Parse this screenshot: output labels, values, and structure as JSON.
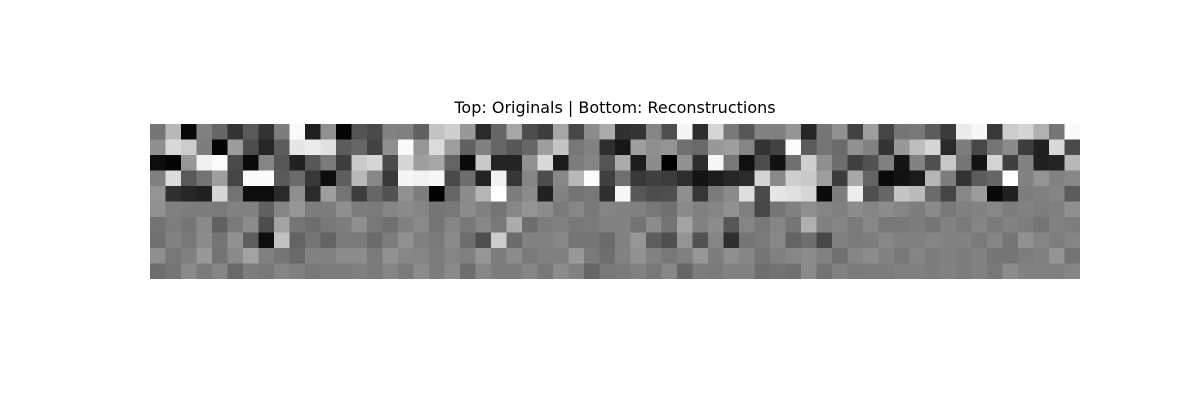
{
  "chart_data": {
    "type": "heatmap",
    "title": "Top: Originals | Bottom: Reconstructions",
    "axes_visible": false,
    "grid": false,
    "colormap": "gray",
    "value_range": [
      0,
      1
    ],
    "rows": 10,
    "cols": 60,
    "cells": [
      [
        0.46,
        0.72,
        0.03,
        0.5,
        0.4,
        0.2,
        0.35,
        0.2,
        0.49,
        0.98,
        0.12,
        0.57,
        0.02,
        0.33,
        0.29,
        0.51,
        0.5,
        0.38,
        0.77,
        0.81,
        0.6,
        0.16,
        0.4,
        0.65,
        0.3,
        0.24,
        0.65,
        0.28,
        0.55,
        0.67,
        0.19,
        0.2,
        0.52,
        0.31,
        0.96,
        0.18,
        0.84,
        0.47,
        0.34,
        0.51,
        0.5,
        0.58,
        0.15,
        0.46,
        0.57,
        0.26,
        0.62,
        0.27,
        0.46,
        0.47,
        0.36,
        0.23,
        0.92,
        0.97,
        0.22,
        0.8,
        0.83,
        0.69,
        0.46,
        0.98
      ],
      [
        0.56,
        0.85,
        0.8,
        0.49,
        0.02,
        0.61,
        0.3,
        0.15,
        0.36,
        0.9,
        0.92,
        0.88,
        0.36,
        0.4,
        0.26,
        0.56,
        0.98,
        0.59,
        0.86,
        0.62,
        0.38,
        0.5,
        0.4,
        0.34,
        0.4,
        0.62,
        0.77,
        0.47,
        0.51,
        0.18,
        0.09,
        0.62,
        0.56,
        0.58,
        0.44,
        0.41,
        0.6,
        0.62,
        0.52,
        0.2,
        0.26,
        0.99,
        0.36,
        0.46,
        0.42,
        0.57,
        0.51,
        0.2,
        0.6,
        0.74,
        0.84,
        0.16,
        0.49,
        0.28,
        0.46,
        0.54,
        0.24,
        0.13,
        0.85,
        0.29
      ],
      [
        0.05,
        0.02,
        0.59,
        0.94,
        0.99,
        0.29,
        0.04,
        0.52,
        0.34,
        0.13,
        0.34,
        0.48,
        0.24,
        0.79,
        0.84,
        0.29,
        0.84,
        0.62,
        0.65,
        0.39,
        0.04,
        0.79,
        0.14,
        0.14,
        0.57,
        0.85,
        0.1,
        0.49,
        0.52,
        0.33,
        0.67,
        0.11,
        0.55,
        0.0,
        0.57,
        0.18,
        0.97,
        0.47,
        0.06,
        0.3,
        0.07,
        0.44,
        0.81,
        0.56,
        0.43,
        0.25,
        0.32,
        0.5,
        0.08,
        0.51,
        0.31,
        0.78,
        0.46,
        0.08,
        0.83,
        0.25,
        0.51,
        0.13,
        0.14,
        0.72
      ],
      [
        0.5,
        0.86,
        0.35,
        0.45,
        0.62,
        0.27,
        0.98,
        0.98,
        0.35,
        0.42,
        0.22,
        0.05,
        0.37,
        0.72,
        0.53,
        0.22,
        0.96,
        0.95,
        0.97,
        0.29,
        0.43,
        0.14,
        0.95,
        0.21,
        0.52,
        0.3,
        0.53,
        0.72,
        0.99,
        0.25,
        0.44,
        0.22,
        0.25,
        0.24,
        0.18,
        0.08,
        0.11,
        0.15,
        0.17,
        0.83,
        0.54,
        0.81,
        0.79,
        0.62,
        0.23,
        0.66,
        0.39,
        0.04,
        0.07,
        0.1,
        0.71,
        0.49,
        0.2,
        0.36,
        0.4,
        1.0,
        0.51,
        0.58,
        0.51,
        0.53
      ],
      [
        0.58,
        0.19,
        0.15,
        0.13,
        0.84,
        0.45,
        0.05,
        0.05,
        0.16,
        0.56,
        0.17,
        0.62,
        0.46,
        0.24,
        0.4,
        0.32,
        0.57,
        0.49,
        0.01,
        0.4,
        0.55,
        0.71,
        1.0,
        0.49,
        0.55,
        0.13,
        0.51,
        0.45,
        0.47,
        0.19,
        0.97,
        0.34,
        0.3,
        0.31,
        0.56,
        0.21,
        0.48,
        0.54,
        0.87,
        0.29,
        0.9,
        0.88,
        0.84,
        0.04,
        0.49,
        0.93,
        0.31,
        0.4,
        0.77,
        0.73,
        0.42,
        0.27,
        0.53,
        0.61,
        0.03,
        0.13,
        0.49,
        0.5,
        0.52,
        0.36
      ],
      [
        0.57,
        0.5,
        0.49,
        0.49,
        0.48,
        0.51,
        0.51,
        0.38,
        0.52,
        0.59,
        0.49,
        0.49,
        0.56,
        0.49,
        0.48,
        0.52,
        0.54,
        0.52,
        0.46,
        0.47,
        0.55,
        0.5,
        0.46,
        0.53,
        0.58,
        0.55,
        0.48,
        0.53,
        0.47,
        0.52,
        0.51,
        0.5,
        0.47,
        0.44,
        0.54,
        0.5,
        0.52,
        0.57,
        0.5,
        0.28,
        0.46,
        0.5,
        0.56,
        0.52,
        0.5,
        0.55,
        0.52,
        0.55,
        0.52,
        0.49,
        0.54,
        0.47,
        0.5,
        0.51,
        0.53,
        0.49,
        0.51,
        0.49,
        0.5,
        0.56
      ],
      [
        0.45,
        0.49,
        0.46,
        0.54,
        0.38,
        0.48,
        0.55,
        0.3,
        0.64,
        0.46,
        0.43,
        0.47,
        0.49,
        0.56,
        0.47,
        0.44,
        0.5,
        0.54,
        0.46,
        0.52,
        0.47,
        0.53,
        0.47,
        0.67,
        0.43,
        0.49,
        0.5,
        0.47,
        0.48,
        0.51,
        0.51,
        0.45,
        0.55,
        0.45,
        0.64,
        0.51,
        0.55,
        0.34,
        0.52,
        0.47,
        0.52,
        0.46,
        0.69,
        0.5,
        0.52,
        0.48,
        0.53,
        0.47,
        0.47,
        0.49,
        0.46,
        0.51,
        0.48,
        0.52,
        0.48,
        0.51,
        0.49,
        0.46,
        0.51,
        0.49
      ],
      [
        0.44,
        0.51,
        0.47,
        0.55,
        0.46,
        0.57,
        0.37,
        0.05,
        0.76,
        0.39,
        0.46,
        0.39,
        0.48,
        0.48,
        0.42,
        0.49,
        0.57,
        0.5,
        0.48,
        0.54,
        0.43,
        0.31,
        0.8,
        0.42,
        0.51,
        0.51,
        0.53,
        0.46,
        0.46,
        0.42,
        0.51,
        0.59,
        0.37,
        0.31,
        0.58,
        0.32,
        0.52,
        0.18,
        0.46,
        0.48,
        0.53,
        0.39,
        0.43,
        0.28,
        0.5,
        0.48,
        0.49,
        0.53,
        0.5,
        0.5,
        0.52,
        0.51,
        0.51,
        0.48,
        0.52,
        0.46,
        0.57,
        0.52,
        0.49,
        0.52
      ],
      [
        0.56,
        0.47,
        0.5,
        0.6,
        0.45,
        0.54,
        0.64,
        0.5,
        0.46,
        0.41,
        0.51,
        0.51,
        0.55,
        0.55,
        0.48,
        0.57,
        0.53,
        0.52,
        0.49,
        0.52,
        0.5,
        0.59,
        0.49,
        0.55,
        0.48,
        0.5,
        0.5,
        0.6,
        0.48,
        0.43,
        0.51,
        0.57,
        0.51,
        0.47,
        0.5,
        0.59,
        0.49,
        0.56,
        0.52,
        0.46,
        0.5,
        0.53,
        0.55,
        0.51,
        0.44,
        0.52,
        0.55,
        0.51,
        0.47,
        0.52,
        0.49,
        0.5,
        0.49,
        0.51,
        0.46,
        0.46,
        0.49,
        0.5,
        0.58,
        0.45
      ],
      [
        0.43,
        0.46,
        0.54,
        0.48,
        0.52,
        0.41,
        0.49,
        0.47,
        0.52,
        0.5,
        0.47,
        0.49,
        0.49,
        0.5,
        0.48,
        0.52,
        0.48,
        0.55,
        0.49,
        0.54,
        0.43,
        0.53,
        0.49,
        0.49,
        0.52,
        0.47,
        0.55,
        0.51,
        0.4,
        0.47,
        0.48,
        0.51,
        0.47,
        0.53,
        0.4,
        0.49,
        0.48,
        0.51,
        0.51,
        0.43,
        0.45,
        0.44,
        0.54,
        0.45,
        0.51,
        0.48,
        0.49,
        0.49,
        0.5,
        0.5,
        0.49,
        0.51,
        0.49,
        0.51,
        0.47,
        0.55,
        0.51,
        0.51,
        0.5,
        0.52
      ]
    ]
  }
}
